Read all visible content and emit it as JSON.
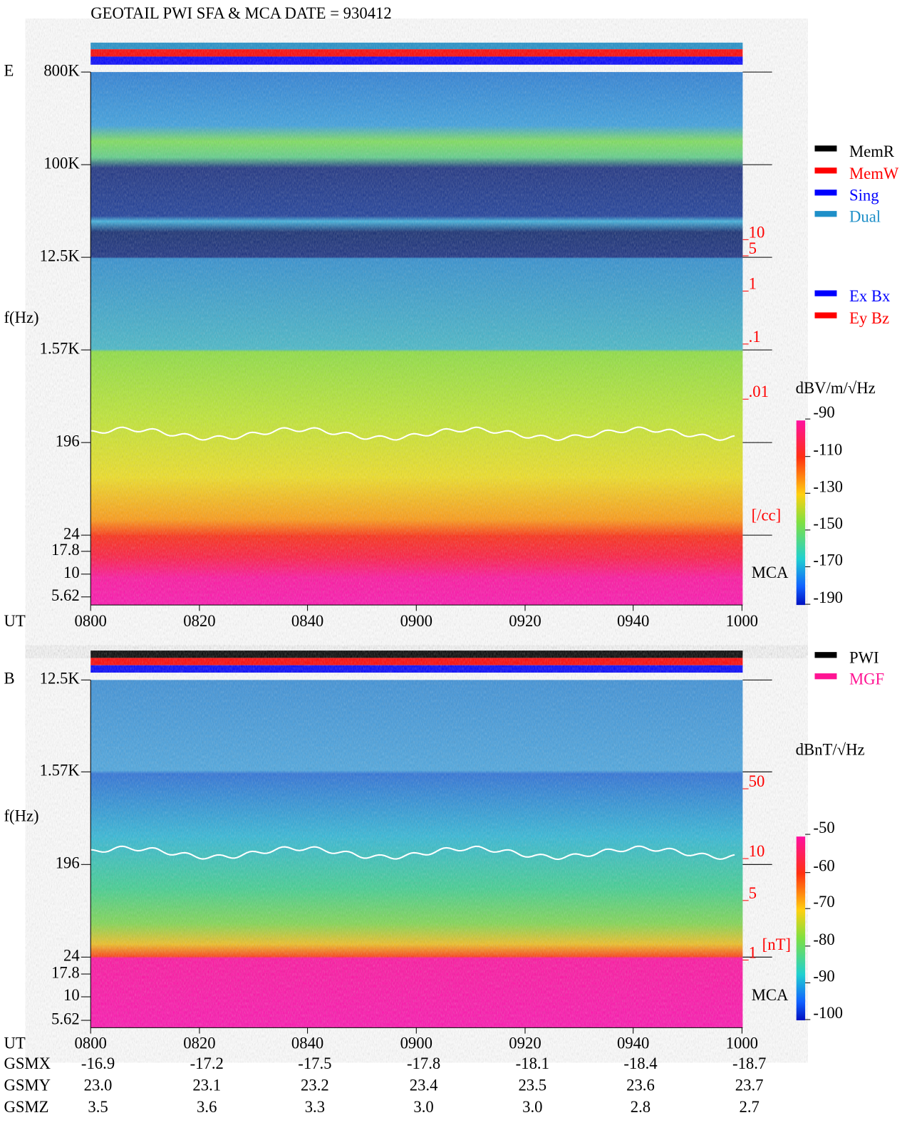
{
  "title": "GEOTAIL  PWI SFA & MCA   DATE = 930412",
  "panels": [
    {
      "label": "E",
      "y_axis_label": "f(Hz)",
      "freq_ticks": [
        "800K",
        "100K",
        "12.5K",
        "1.57K",
        "196",
        "24",
        "17.8",
        "10",
        "5.62"
      ],
      "side_ticks": [
        "10",
        "5",
        "1",
        ".1",
        ".01"
      ],
      "side_unit": "[/cc]",
      "mca_label": "MCA",
      "colorbar_unit": "dBV/m/√Hz",
      "colorbar_ticks": [
        "-90",
        "-110",
        "-130",
        "-150",
        "-170",
        "-190"
      ],
      "legend": [
        {
          "label": "MemR",
          "color": "#000000"
        },
        {
          "label": "MemW",
          "color": "#ff0000"
        },
        {
          "label": "Sing",
          "color": "#0000ff"
        },
        {
          "label": "Dual",
          "color": "#1e8fc8"
        }
      ],
      "legend2": [
        {
          "label": "Ex Bx",
          "color": "#0000ff"
        },
        {
          "label": "Ey Bz",
          "color": "#ff0000"
        }
      ],
      "time_label": "UT",
      "time_ticks": [
        "0800",
        "0820",
        "0840",
        "0900",
        "0920",
        "0940",
        "1000"
      ]
    },
    {
      "label": "B",
      "y_axis_label": "f(Hz)",
      "freq_ticks": [
        "12.5K",
        "1.57K",
        "196",
        "24",
        "17.8",
        "10",
        "5.62"
      ],
      "side_ticks": [
        "50",
        "10",
        "5",
        "1"
      ],
      "side_unit": "[nT]",
      "mca_label": "MCA",
      "colorbar_unit": "dBnT/√Hz",
      "colorbar_ticks": [
        "-50",
        "-60",
        "-70",
        "-80",
        "-90",
        "-100"
      ],
      "legend": [
        {
          "label": "PWI",
          "color": "#000000"
        },
        {
          "label": "MGF",
          "color": "#ff1493"
        }
      ],
      "time_label": "UT",
      "time_ticks": [
        "0800",
        "0820",
        "0840",
        "0900",
        "0920",
        "0940",
        "1000"
      ]
    }
  ],
  "orbit": {
    "rows": [
      {
        "label": "GSMX",
        "values": [
          "-16.9",
          "-17.2",
          "-17.5",
          "-17.8",
          "-18.1",
          "-18.4",
          "-18.7"
        ]
      },
      {
        "label": "GSMY",
        "values": [
          "23.0",
          "23.1",
          "23.2",
          "23.4",
          "23.5",
          "23.6",
          "23.7"
        ]
      },
      {
        "label": "GSMZ",
        "values": [
          "3.5",
          "3.6",
          "3.3",
          "3.0",
          "3.0",
          "2.8",
          "2.7"
        ]
      }
    ]
  }
}
